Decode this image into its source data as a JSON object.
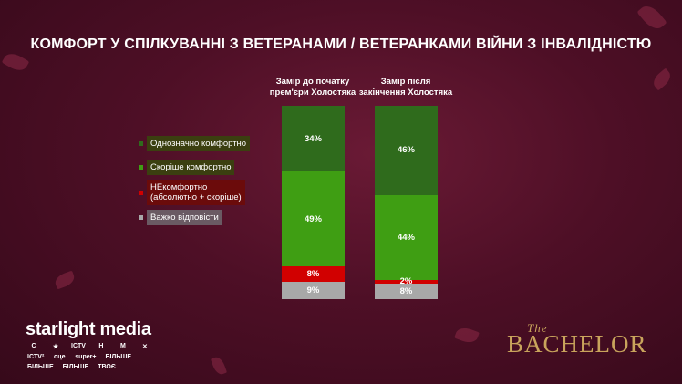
{
  "title": "КОМФОРТ У СПІЛКУВАННІ З ВЕТЕРАНАМИ / ВЕТЕРАНКАМИ ВІЙНИ З ІНВАЛІДНІСТЮ",
  "columns": [
    {
      "header_line1": "Замір до початку",
      "header_line2": "прем'єри Холостяка"
    },
    {
      "header_line1": "Замір після",
      "header_line2": "закінчення Холостяка"
    }
  ],
  "legend": [
    {
      "label": "Однозначно комфортно",
      "color": "#2f6b1c",
      "label_bg": "#3b3f10"
    },
    {
      "label": "Скоріше комфортно",
      "color": "#3f9e13",
      "label_bg": "#3b3f10"
    },
    {
      "label_line1": "НЕкомфортно",
      "label_line2": "(абсолютно + скоріше)",
      "color": "#d10000",
      "label_bg": "#6b0b0b"
    },
    {
      "label": "Важко відповісти",
      "color": "#a8a8a8",
      "label_bg": "#6a5a63"
    }
  ],
  "chart_data": {
    "type": "bar",
    "stacked": true,
    "orientation": "vertical",
    "categories": [
      "Замір до початку прем'єри Холостяка",
      "Замір після закінчення Холостяка"
    ],
    "series": [
      {
        "name": "Однозначно комфортно",
        "values": [
          34,
          46
        ],
        "labels": [
          "34%",
          "46%"
        ],
        "color": "#2f6b1c"
      },
      {
        "name": "Скоріше комфортно",
        "values": [
          49,
          44
        ],
        "labels": [
          "49%",
          "44%"
        ],
        "color": "#3f9e13"
      },
      {
        "name": "НЕкомфортно (абсолютно + скоріше)",
        "values": [
          8,
          2
        ],
        "labels": [
          "8%",
          "2%"
        ],
        "color": "#d10000"
      },
      {
        "name": "Важко відповісти",
        "values": [
          9,
          8
        ],
        "labels": [
          "9%",
          "8%"
        ],
        "color": "#a8a8a8"
      }
    ],
    "title": "КОМФОРТ У СПІЛКУВАННІ З ВЕТЕРАНАМИ / ВЕТЕРАНКАМИ ВІЙНИ З ІНВАЛІДНІСТЮ",
    "legend_position": "left",
    "grid": false
  },
  "branding": {
    "company": "starlight media",
    "channels": [
      "С",
      "★",
      "ICTV",
      "Н",
      "М",
      "✕",
      "ICTV²",
      "оце",
      "super+",
      "БІЛЬШЕ",
      "БІЛЬШЕ",
      "БІЛЬШЕ",
      "ТВОЄ"
    ],
    "show_small": "The",
    "show": "BACHELOR"
  }
}
